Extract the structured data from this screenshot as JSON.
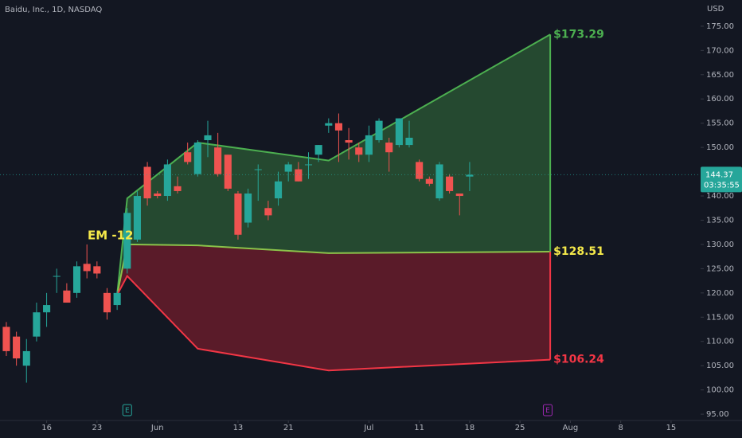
{
  "chart_data": {
    "type": "candlestick",
    "title": "Baidu, Inc., 1D, NASDAQ",
    "y_axis_label": "USD",
    "annotation": "EM -12",
    "xlim": [
      -0.63,
      68.93
    ],
    "ylim": [
      93.7,
      180.4
    ],
    "yticks": [
      {
        "value": 95,
        "label": "95.00"
      },
      {
        "value": 100,
        "label": "100.00"
      },
      {
        "value": 105,
        "label": "105.00"
      },
      {
        "value": 110,
        "label": "110.00"
      },
      {
        "value": 115,
        "label": "115.00"
      },
      {
        "value": 120,
        "label": "120.00"
      },
      {
        "value": 125,
        "label": "125.00"
      },
      {
        "value": 130,
        "label": "130.00"
      },
      {
        "value": 135,
        "label": "135.00"
      },
      {
        "value": 140,
        "label": "140.00"
      },
      {
        "value": 145,
        "label": "145.00"
      },
      {
        "value": 150,
        "label": "150.00"
      },
      {
        "value": 155,
        "label": "155.00"
      },
      {
        "value": 160,
        "label": "160.00"
      },
      {
        "value": 165,
        "label": "165.00"
      },
      {
        "value": 170,
        "label": "170.00"
      },
      {
        "value": 175,
        "label": "175.00"
      }
    ],
    "xticks": [
      {
        "value": 4,
        "label": "16"
      },
      {
        "value": 9,
        "label": "23"
      },
      {
        "value": 15,
        "label": "Jun"
      },
      {
        "value": 23,
        "label": "13"
      },
      {
        "value": 28,
        "label": "21"
      },
      {
        "value": 36,
        "label": "Jul"
      },
      {
        "value": 41,
        "label": "11"
      },
      {
        "value": 46,
        "label": "18"
      },
      {
        "value": 51,
        "label": "25"
      },
      {
        "value": 56,
        "label": "Aug"
      },
      {
        "value": 61,
        "label": "8"
      },
      {
        "value": 66,
        "label": "15"
      }
    ],
    "up_color": "#26a69a",
    "down_color": "#ef5350",
    "x": [
      0,
      1,
      2,
      3,
      4,
      5,
      6,
      7,
      8,
      9,
      10,
      11,
      12,
      13,
      14,
      15,
      16,
      17,
      18,
      19,
      20,
      21,
      22,
      23,
      24,
      25,
      26,
      27,
      28,
      29,
      30,
      31,
      32,
      33,
      34,
      35,
      36,
      37,
      38,
      39,
      40,
      41,
      42,
      43,
      44,
      45,
      46
    ],
    "open": [
      113,
      111,
      105,
      111,
      116,
      123.5,
      120.5,
      120,
      126,
      125.5,
      120,
      117.5,
      125,
      131,
      146,
      140.5,
      140,
      142,
      149,
      144.5,
      151.5,
      150,
      148.5,
      140.5,
      134.5,
      145.5,
      137.5,
      139.5,
      145,
      145.5,
      146.5,
      148.5,
      154.5,
      155,
      151.5,
      150,
      148.5,
      151.5,
      151,
      150.5,
      150.5,
      147,
      143.5,
      139.5,
      144,
      140.5,
      144
    ],
    "high": [
      114,
      112,
      110.5,
      118,
      120,
      125,
      122,
      126.5,
      130,
      126.5,
      121,
      120.5,
      137.5,
      141,
      147,
      141,
      147.5,
      144,
      151,
      151.5,
      155.5,
      153,
      148.5,
      141,
      141.5,
      146.5,
      139,
      145,
      147,
      147,
      149,
      150.5,
      156,
      157,
      154,
      151,
      154.5,
      156,
      152,
      156,
      155.5,
      147.5,
      144,
      147,
      144.5,
      140.5,
      147
    ],
    "low": [
      107,
      105,
      101.5,
      110,
      113,
      120,
      118,
      119,
      123,
      123,
      114.5,
      116.5,
      124,
      130.5,
      138,
      139.5,
      139,
      140.5,
      146.5,
      144,
      148,
      144,
      141,
      131,
      133.5,
      139,
      135,
      138,
      143,
      143,
      143.5,
      147,
      153,
      147,
      147.5,
      147,
      147,
      151,
      145,
      150,
      150,
      143,
      142,
      139,
      140.5,
      136,
      141
    ],
    "close": [
      108,
      106.5,
      108,
      116,
      117.5,
      123.5,
      118,
      125.5,
      124.5,
      124,
      116,
      120,
      136.5,
      140,
      139.5,
      140,
      146.5,
      141,
      147,
      151,
      152.5,
      144.5,
      141.5,
      132,
      140.5,
      145.5,
      136,
      143,
      146.5,
      143,
      146.5,
      150.5,
      155,
      153.5,
      151,
      148.5,
      152.5,
      155.5,
      149,
      156,
      152,
      143.5,
      142.5,
      146.5,
      141,
      140,
      144.37
    ],
    "countdown": "03:35:55",
    "envelope": {
      "x": [
        11,
        12,
        19,
        32,
        54
      ],
      "upper": [
        119.6,
        139.5,
        151,
        147.3,
        173.29
      ],
      "middle": [
        119.6,
        130,
        129.8,
        128.2,
        128.51
      ],
      "lower": [
        119.6,
        123.5,
        108.5,
        104,
        106.24
      ],
      "upper_color": "#4caf50",
      "middle_color": "#8bc34a",
      "lower_color": "#f23645",
      "upper_fill": "rgba(76,175,80,0.33)",
      "lower_fill": "rgba(178,34,52,0.45)",
      "upper_end_label": "$173.29",
      "middle_end_label": "$128.51",
      "lower_end_label": "$106.24"
    },
    "earnings": [
      {
        "x": 12,
        "label": "E",
        "color": "#26a69a"
      },
      {
        "x": 53.75,
        "label": "E",
        "color": "#9c27b0"
      }
    ]
  }
}
